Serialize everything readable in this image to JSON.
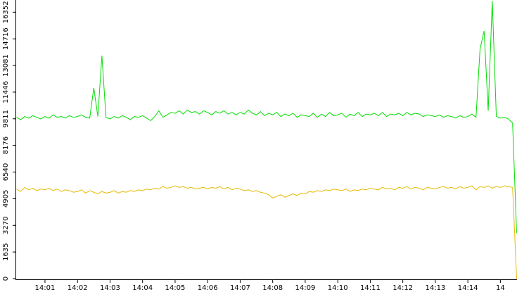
{
  "chart_data": {
    "type": "line",
    "categories": [
      null,
      null,
      null,
      null,
      null,
      null,
      null,
      "14:01",
      null,
      null,
      null,
      null,
      null,
      null,
      null,
      "14:02",
      null,
      null,
      null,
      null,
      null,
      null,
      null,
      "14:03",
      null,
      null,
      null,
      null,
      null,
      null,
      null,
      "14:04",
      null,
      null,
      null,
      null,
      null,
      null,
      null,
      "14:05",
      null,
      null,
      null,
      null,
      null,
      null,
      null,
      "14:06",
      null,
      null,
      null,
      null,
      null,
      null,
      null,
      "14:07",
      null,
      null,
      null,
      null,
      null,
      null,
      null,
      "14:08",
      null,
      null,
      null,
      null,
      null,
      null,
      null,
      "14:09",
      null,
      null,
      null,
      null,
      null,
      null,
      null,
      "14:10",
      null,
      null,
      null,
      null,
      null,
      null,
      null,
      "14:11",
      null,
      null,
      null,
      null,
      null,
      null,
      null,
      "14:12",
      null,
      null,
      null,
      null,
      null,
      null,
      null,
      "14:13",
      null,
      null,
      null,
      null,
      null,
      null,
      null,
      "14:14",
      null,
      null,
      null,
      null,
      null,
      null,
      null,
      "14",
      null,
      null,
      null,
      null
    ],
    "series": [
      {
        "color": "#00dd00",
        "values": [
          9900,
          9750,
          9950,
          9850,
          10000,
          9900,
          9800,
          9950,
          9850,
          10050,
          9900,
          9950,
          9850,
          10000,
          9900,
          9950,
          10050,
          9900,
          9850,
          11711,
          9950,
          13683,
          9900,
          9800,
          9950,
          9850,
          10000,
          9900,
          9750,
          9950,
          9900,
          10000,
          9850,
          9700,
          9950,
          10300,
          9900,
          10050,
          10200,
          10150,
          10300,
          10100,
          10350,
          10200,
          10250,
          10100,
          10300,
          10200,
          10050,
          10250,
          10150,
          10300,
          10100,
          10200,
          10050,
          10200,
          10100,
          10350,
          10150,
          10050,
          10250,
          10000,
          10150,
          10050,
          10200,
          9950,
          10100,
          10000,
          10150,
          9900,
          10050,
          10000,
          9950,
          10150,
          9900,
          10100,
          9950,
          10200,
          10000,
          10050,
          10150,
          9900,
          10100,
          10000,
          10200,
          9950,
          10100,
          10050,
          10150,
          10000,
          10200,
          9950,
          10100,
          10050,
          10150,
          10000,
          10200,
          10050,
          10150,
          10100,
          9950,
          10050,
          10000,
          9950,
          10050,
          9900,
          10000,
          9950,
          9850,
          10000,
          9900,
          9950,
          10100,
          9900,
          14094,
          15203,
          10300,
          17050,
          9950,
          9850,
          9900,
          9800,
          9550,
          2794
        ]
      },
      {
        "color": "#e8b800",
        "values": [
          5500,
          5350,
          5600,
          5450,
          5550,
          5400,
          5500,
          5450,
          5550,
          5400,
          5500,
          5350,
          5450,
          5400,
          5300,
          5350,
          5450,
          5250,
          5400,
          5300,
          5200,
          5350,
          5250,
          5300,
          5400,
          5250,
          5350,
          5300,
          5400,
          5350,
          5450,
          5400,
          5500,
          5450,
          5550,
          5500,
          5650,
          5550,
          5600,
          5700,
          5600,
          5650,
          5550,
          5600,
          5500,
          5550,
          5600,
          5500,
          5600,
          5550,
          5650,
          5500,
          5600,
          5450,
          5550,
          5500,
          5400,
          5450,
          5350,
          5400,
          5300,
          5250,
          5150,
          4950,
          5050,
          5150,
          5000,
          5100,
          5200,
          5100,
          5250,
          5200,
          5350,
          5300,
          5400,
          5350,
          5450,
          5400,
          5500,
          5450,
          5400,
          5500,
          5350,
          5450,
          5400,
          5500,
          5450,
          5550,
          5500,
          5450,
          5600,
          5500,
          5550,
          5450,
          5600,
          5550,
          5650,
          5500,
          5600,
          5550,
          5450,
          5600,
          5550,
          5500,
          5600,
          5650,
          5550,
          5600,
          5500,
          5650,
          5550,
          5600,
          5700,
          5450,
          5650,
          5600,
          5700,
          5550,
          5650,
          5600,
          5700,
          5650,
          5600,
          0
        ]
      }
    ],
    "ylim": [
      0,
      17100
    ],
    "yticks": [
      0,
      1635,
      3270,
      4905,
      6540,
      8176,
      9811,
      11446,
      13081,
      14716,
      16352
    ]
  }
}
